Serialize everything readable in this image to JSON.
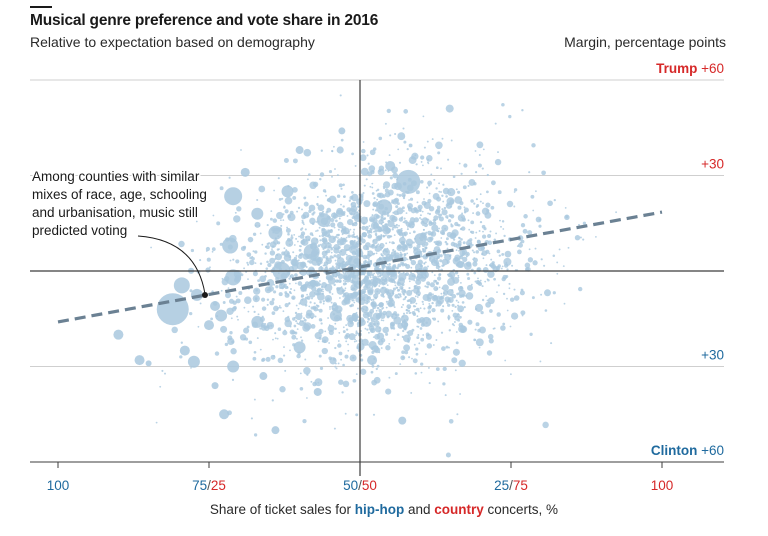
{
  "title": "Musical genre preference and vote share in 2016",
  "subtitle": "Relative to expectation based on demography",
  "units_label": "Margin, percentage points",
  "annotation": [
    "Among counties with similar",
    "mixes of race, age, schooling",
    "and urbanisation, music still",
    "predicted voting"
  ],
  "xlabel": {
    "prefix": "Share of ticket sales for ",
    "hiphop": "hip-hop",
    "and": " and ",
    "country": "country",
    "suffix": " concerts, %"
  },
  "colors": {
    "trump": "#d62828",
    "clinton": "#1f6a9e",
    "dots": "#a9c8de",
    "trend": "#6b8193",
    "axis": "#3c3c3c",
    "grid": "#cfcfcf"
  },
  "chart_data": {
    "type": "scatter",
    "title": "Musical genre preference and vote share in 2016",
    "subtitle": "Relative to expectation based on demography",
    "xlabel": "Share of ticket sales for hip-hop and country concerts, %",
    "ylabel": "Margin, percentage points",
    "x_axis": {
      "range": [
        0,
        100
      ],
      "ticks": [
        {
          "value": 0,
          "parts": [
            {
              "t": "100",
              "c": "#1f6a9e"
            }
          ]
        },
        {
          "value": 25,
          "parts": [
            {
              "t": "75",
              "c": "#1f6a9e"
            },
            {
              "t": "/",
              "c": "#555555"
            },
            {
              "t": "25",
              "c": "#d62828"
            }
          ]
        },
        {
          "value": 50,
          "parts": [
            {
              "t": "50",
              "c": "#1f6a9e"
            },
            {
              "t": "/",
              "c": "#555555"
            },
            {
              "t": "50",
              "c": "#d62828"
            }
          ]
        },
        {
          "value": 75,
          "parts": [
            {
              "t": "25",
              "c": "#1f6a9e"
            },
            {
              "t": "/",
              "c": "#555555"
            },
            {
              "t": "75",
              "c": "#d62828"
            }
          ]
        },
        {
          "value": 100,
          "parts": [
            {
              "t": "100",
              "c": "#d62828"
            }
          ]
        }
      ]
    },
    "y_axis": {
      "range": [
        -60,
        60
      ],
      "ticks": [
        {
          "value": 60,
          "bold": "Trump",
          "text": "+60",
          "color": "#d62828"
        },
        {
          "value": 30,
          "bold": "",
          "text": "+30",
          "color": "#d62828"
        },
        {
          "value": 0,
          "bold": "",
          "text": "",
          "color": "#333333"
        },
        {
          "value": -30,
          "bold": "",
          "text": "+30",
          "color": "#1f6a9e"
        },
        {
          "value": -60,
          "bold": "Clinton",
          "text": "+60",
          "color": "#1f6a9e"
        }
      ]
    },
    "trend_line": {
      "x": [
        0,
        100
      ],
      "y": [
        -16,
        18.5
      ]
    },
    "big_points": [
      {
        "x": 19,
        "y": -12,
        "r": 16
      },
      {
        "x": 20.5,
        "y": -4.5,
        "r": 8
      },
      {
        "x": 23,
        "y": -7.5,
        "r": 6
      },
      {
        "x": 26,
        "y": -11,
        "r": 5
      },
      {
        "x": 29,
        "y": 23.5,
        "r": 9
      },
      {
        "x": 28.5,
        "y": 8,
        "r": 8
      },
      {
        "x": 29,
        "y": -2,
        "r": 8
      },
      {
        "x": 27,
        "y": -14,
        "r": 6
      },
      {
        "x": 33,
        "y": 18,
        "r": 6
      },
      {
        "x": 31,
        "y": 31,
        "r": 4.5
      },
      {
        "x": 25,
        "y": -17,
        "r": 5
      },
      {
        "x": 22.5,
        "y": -28.5,
        "r": 6
      },
      {
        "x": 21,
        "y": -25,
        "r": 5
      },
      {
        "x": 29,
        "y": -30,
        "r": 6
      },
      {
        "x": 10,
        "y": -20,
        "r": 5
      },
      {
        "x": 13.5,
        "y": -28,
        "r": 5
      },
      {
        "x": 27.5,
        "y": -45,
        "r": 5
      },
      {
        "x": 33,
        "y": -16,
        "r": 6
      },
      {
        "x": 36,
        "y": 12,
        "r": 7
      },
      {
        "x": 37,
        "y": 0,
        "r": 9
      },
      {
        "x": 42,
        "y": 6,
        "r": 8
      },
      {
        "x": 44,
        "y": 16,
        "r": 7
      },
      {
        "x": 49,
        "y": 3,
        "r": 6
      },
      {
        "x": 54,
        "y": 20,
        "r": 8
      },
      {
        "x": 58,
        "y": 28,
        "r": 12
      },
      {
        "x": 46,
        "y": -14,
        "r": 6
      },
      {
        "x": 38,
        "y": 25,
        "r": 6
      },
      {
        "x": 40,
        "y": -24,
        "r": 6
      },
      {
        "x": 34,
        "y": -33,
        "r": 4
      },
      {
        "x": 40,
        "y": 38,
        "r": 4
      },
      {
        "x": 55,
        "y": 33,
        "r": 5
      },
      {
        "x": 60,
        "y": 10,
        "r": 6
      },
      {
        "x": 43,
        "y": -38,
        "r": 4
      },
      {
        "x": 52,
        "y": -28,
        "r": 5
      },
      {
        "x": 61,
        "y": -16,
        "r": 5
      },
      {
        "x": 57,
        "y": -47,
        "r": 4
      },
      {
        "x": 47,
        "y": 44,
        "r": 3.5
      },
      {
        "x": 36,
        "y": -50,
        "r": 4
      },
      {
        "x": 26,
        "y": -36,
        "r": 3.5
      },
      {
        "x": 15,
        "y": -29,
        "r": 3
      }
    ],
    "cloud": {
      "n": 2400,
      "center": [
        52,
        1
      ],
      "spread": [
        10,
        13
      ],
      "x_range": [
        8,
        99
      ],
      "y_range": [
        -60,
        57
      ]
    }
  }
}
